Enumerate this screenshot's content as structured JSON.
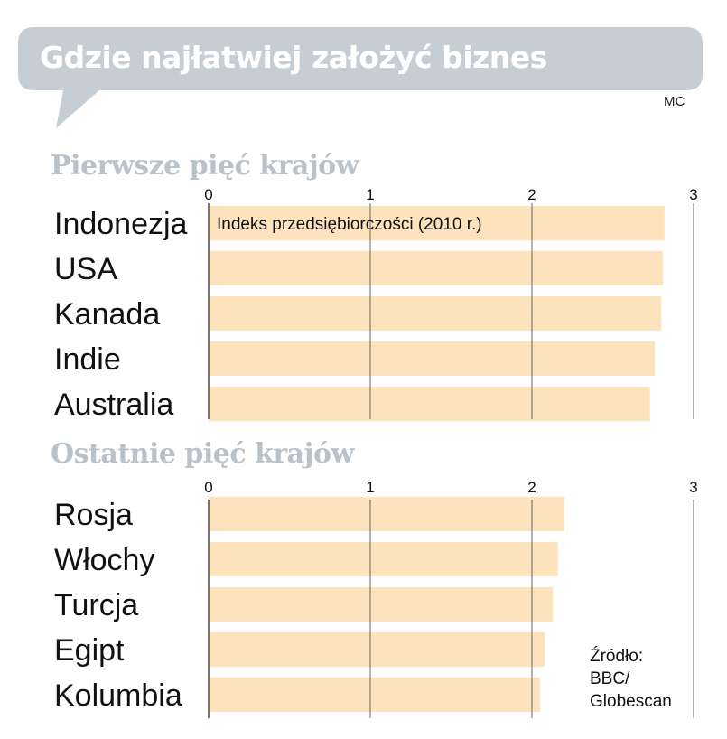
{
  "title": "Gdzie najłatwiej założyć biznes",
  "author": "MC",
  "colors": {
    "bar": "#fde2be",
    "banner": "#c6ced3",
    "grid": "#555555",
    "section_title": "#b9c2c8"
  },
  "source": {
    "lines": [
      "Źródło:",
      "BBC/",
      "Globescan"
    ]
  },
  "chart_data": [
    {
      "type": "bar",
      "orientation": "horizontal",
      "title": "Pierwsze pięć krajów",
      "annotation": "Indeks przedsiębiorczości (2010 r.)",
      "categories": [
        "Indonezja",
        "USA",
        "Kanada",
        "Indie",
        "Australia"
      ],
      "values": [
        2.82,
        2.81,
        2.8,
        2.76,
        2.73
      ],
      "xlim": [
        0,
        3
      ],
      "ticks": [
        0,
        1,
        2,
        3
      ],
      "grid": true
    },
    {
      "type": "bar",
      "orientation": "horizontal",
      "title": "Ostatnie pięć krajów",
      "categories": [
        "Rosja",
        "Włochy",
        "Turcja",
        "Egipt",
        "Kolumbia"
      ],
      "values": [
        2.2,
        2.16,
        2.13,
        2.08,
        2.05
      ],
      "xlim": [
        0,
        3
      ],
      "ticks": [
        0,
        1,
        2,
        3
      ],
      "grid": true
    }
  ]
}
